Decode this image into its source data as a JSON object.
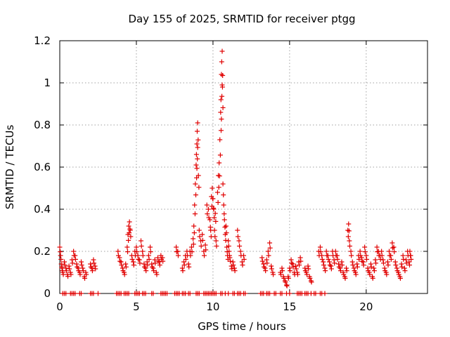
{
  "chart_data": {
    "type": "scatter",
    "title": "Day 155 of 2025, SRMTID for receiver ptgg",
    "xlabel": "GPS time / hours",
    "ylabel": "SRMTID / TECUs",
    "xlim": [
      0,
      24
    ],
    "ylim": [
      0,
      1.2
    ],
    "x_ticks": [
      0,
      5,
      10,
      15,
      20
    ],
    "x_tick_labels": [
      "0",
      "5",
      "10",
      "15",
      "20"
    ],
    "y_ticks": [
      0,
      0.2,
      0.4,
      0.6,
      0.8,
      1.0,
      1.2
    ],
    "y_tick_labels": [
      "0",
      "0.2",
      "0.4",
      "0.6",
      "0.8",
      "1",
      "1.2"
    ],
    "grid": true,
    "marker": "plus",
    "color": "#e00000",
    "series": [
      {
        "name": "SRMTID",
        "points": [
          [
            0.0,
            0.22
          ],
          [
            0.05,
            0.18
          ],
          [
            0.1,
            0.14
          ],
          [
            0.15,
            0.12
          ],
          [
            0.2,
            0.1
          ],
          [
            0.3,
            0.15
          ],
          [
            0.4,
            0.12
          ],
          [
            0.5,
            0.09
          ],
          [
            0.6,
            0.13
          ],
          [
            0.7,
            0.1
          ],
          [
            0.8,
            0.16
          ],
          [
            0.9,
            0.2
          ],
          [
            1.0,
            0.18
          ],
          [
            1.1,
            0.14
          ],
          [
            1.2,
            0.12
          ],
          [
            1.3,
            0.1
          ],
          [
            1.4,
            0.15
          ],
          [
            1.5,
            0.12
          ],
          [
            1.6,
            0.08
          ],
          [
            1.7,
            0.1
          ],
          [
            2.0,
            0.14
          ],
          [
            2.1,
            0.12
          ],
          [
            2.2,
            0.16
          ],
          [
            2.3,
            0.13
          ],
          [
            3.8,
            0.2
          ],
          [
            3.9,
            0.17
          ],
          [
            4.0,
            0.15
          ],
          [
            4.1,
            0.12
          ],
          [
            4.2,
            0.1
          ],
          [
            4.3,
            0.14
          ],
          [
            4.4,
            0.22
          ],
          [
            4.45,
            0.28
          ],
          [
            4.5,
            0.32
          ],
          [
            4.55,
            0.34
          ],
          [
            4.6,
            0.3
          ],
          [
            4.7,
            0.18
          ],
          [
            4.8,
            0.15
          ],
          [
            4.9,
            0.2
          ],
          [
            5.0,
            0.22
          ],
          [
            5.1,
            0.18
          ],
          [
            5.2,
            0.16
          ],
          [
            5.3,
            0.25
          ],
          [
            5.4,
            0.2
          ],
          [
            5.5,
            0.14
          ],
          [
            5.6,
            0.12
          ],
          [
            5.7,
            0.15
          ],
          [
            5.8,
            0.18
          ],
          [
            5.9,
            0.22
          ],
          [
            6.0,
            0.14
          ],
          [
            6.1,
            0.12
          ],
          [
            6.2,
            0.16
          ],
          [
            6.3,
            0.1
          ],
          [
            6.4,
            0.17
          ],
          [
            6.5,
            0.15
          ],
          [
            6.6,
            0.18
          ],
          [
            6.7,
            0.17
          ],
          [
            7.6,
            0.22
          ],
          [
            7.7,
            0.2
          ],
          [
            8.0,
            0.12
          ],
          [
            8.1,
            0.15
          ],
          [
            8.2,
            0.18
          ],
          [
            8.3,
            0.2
          ],
          [
            8.4,
            0.14
          ],
          [
            8.5,
            0.2
          ],
          [
            8.6,
            0.22
          ],
          [
            8.7,
            0.26
          ],
          [
            8.75,
            0.32
          ],
          [
            8.8,
            0.42
          ],
          [
            8.85,
            0.52
          ],
          [
            8.9,
            0.61
          ],
          [
            8.92,
            0.66
          ],
          [
            8.95,
            0.71
          ],
          [
            8.97,
            0.77
          ],
          [
            9.0,
            0.81
          ],
          [
            9.05,
            0.56
          ],
          [
            9.1,
            0.3
          ],
          [
            9.2,
            0.25
          ],
          [
            9.3,
            0.28
          ],
          [
            9.4,
            0.2
          ],
          [
            9.5,
            0.23
          ],
          [
            9.6,
            0.42
          ],
          [
            9.7,
            0.4
          ],
          [
            9.8,
            0.35
          ],
          [
            9.85,
            0.3
          ],
          [
            9.9,
            0.46
          ],
          [
            9.95,
            0.5
          ],
          [
            10.0,
            0.45
          ],
          [
            10.05,
            0.4
          ],
          [
            10.1,
            0.3
          ],
          [
            10.15,
            0.38
          ],
          [
            10.2,
            0.25
          ],
          [
            10.3,
            0.48
          ],
          [
            10.35,
            0.56
          ],
          [
            10.4,
            0.62
          ],
          [
            10.45,
            0.73
          ],
          [
            10.5,
            0.86
          ],
          [
            10.52,
            0.92
          ],
          [
            10.55,
            1.04
          ],
          [
            10.57,
            1.1
          ],
          [
            10.6,
            1.15
          ],
          [
            10.62,
            0.98
          ],
          [
            10.65,
            0.52
          ],
          [
            10.7,
            0.42
          ],
          [
            10.75,
            0.35
          ],
          [
            10.8,
            0.28
          ],
          [
            10.85,
            0.32
          ],
          [
            10.9,
            0.22
          ],
          [
            10.95,
            0.18
          ],
          [
            11.0,
            0.25
          ],
          [
            11.05,
            0.2
          ],
          [
            11.1,
            0.17
          ],
          [
            11.2,
            0.13
          ],
          [
            11.3,
            0.15
          ],
          [
            11.4,
            0.12
          ],
          [
            11.6,
            0.3
          ],
          [
            11.7,
            0.25
          ],
          [
            11.8,
            0.2
          ],
          [
            11.9,
            0.15
          ],
          [
            12.0,
            0.18
          ],
          [
            13.2,
            0.17
          ],
          [
            13.3,
            0.14
          ],
          [
            13.4,
            0.12
          ],
          [
            13.5,
            0.16
          ],
          [
            13.6,
            0.2
          ],
          [
            13.7,
            0.24
          ],
          [
            13.8,
            0.13
          ],
          [
            13.9,
            0.1
          ],
          [
            14.4,
            0.1
          ],
          [
            14.5,
            0.12
          ],
          [
            14.6,
            0.08
          ],
          [
            14.7,
            0.06
          ],
          [
            14.8,
            0.04
          ],
          [
            14.9,
            0.08
          ],
          [
            15.0,
            0.12
          ],
          [
            15.1,
            0.16
          ],
          [
            15.2,
            0.14
          ],
          [
            15.3,
            0.1
          ],
          [
            15.4,
            0.13
          ],
          [
            15.5,
            0.1
          ],
          [
            15.6,
            0.15
          ],
          [
            15.7,
            0.17
          ],
          [
            16.0,
            0.12
          ],
          [
            16.1,
            0.1
          ],
          [
            16.2,
            0.13
          ],
          [
            16.3,
            0.08
          ],
          [
            16.4,
            0.06
          ],
          [
            16.9,
            0.2
          ],
          [
            17.0,
            0.22
          ],
          [
            17.1,
            0.18
          ],
          [
            17.2,
            0.15
          ],
          [
            17.3,
            0.12
          ],
          [
            17.4,
            0.2
          ],
          [
            17.5,
            0.18
          ],
          [
            17.6,
            0.15
          ],
          [
            17.7,
            0.13
          ],
          [
            17.8,
            0.2
          ],
          [
            17.9,
            0.16
          ],
          [
            18.0,
            0.2
          ],
          [
            18.1,
            0.18
          ],
          [
            18.2,
            0.14
          ],
          [
            18.3,
            0.12
          ],
          [
            18.4,
            0.15
          ],
          [
            18.5,
            0.1
          ],
          [
            18.6,
            0.08
          ],
          [
            18.7,
            0.12
          ],
          [
            18.8,
            0.3
          ],
          [
            18.85,
            0.33
          ],
          [
            18.9,
            0.25
          ],
          [
            19.0,
            0.2
          ],
          [
            19.1,
            0.15
          ],
          [
            19.2,
            0.12
          ],
          [
            19.3,
            0.1
          ],
          [
            19.4,
            0.14
          ],
          [
            19.5,
            0.18
          ],
          [
            19.6,
            0.2
          ],
          [
            19.7,
            0.17
          ],
          [
            19.8,
            0.15
          ],
          [
            19.9,
            0.22
          ],
          [
            20.0,
            0.18
          ],
          [
            20.1,
            0.12
          ],
          [
            20.2,
            0.1
          ],
          [
            20.3,
            0.14
          ],
          [
            20.4,
            0.08
          ],
          [
            20.5,
            0.12
          ],
          [
            20.6,
            0.16
          ],
          [
            20.7,
            0.22
          ],
          [
            20.8,
            0.2
          ],
          [
            20.9,
            0.18
          ],
          [
            21.0,
            0.2
          ],
          [
            21.1,
            0.16
          ],
          [
            21.2,
            0.12
          ],
          [
            21.3,
            0.1
          ],
          [
            21.4,
            0.15
          ],
          [
            21.5,
            0.2
          ],
          [
            21.6,
            0.18
          ],
          [
            21.7,
            0.24
          ],
          [
            21.8,
            0.22
          ],
          [
            21.9,
            0.15
          ],
          [
            22.0,
            0.12
          ],
          [
            22.1,
            0.1
          ],
          [
            22.2,
            0.08
          ],
          [
            22.3,
            0.14
          ],
          [
            22.4,
            0.18
          ],
          [
            22.5,
            0.12
          ],
          [
            22.6,
            0.16
          ],
          [
            22.7,
            0.2
          ],
          [
            22.8,
            0.15
          ],
          [
            22.85,
            0.2
          ],
          [
            22.9,
            0.18
          ]
        ],
        "zero_points_x": [
          0.2,
          0.3,
          0.4,
          0.7,
          0.8,
          0.9,
          1.0,
          1.3,
          1.4,
          2.0,
          2.1,
          2.2,
          2.5,
          3.7,
          3.8,
          3.9,
          4.0,
          4.2,
          4.3,
          4.4,
          4.5,
          4.9,
          5.0,
          5.1,
          5.2,
          5.4,
          5.5,
          5.6,
          6.0,
          6.1,
          6.6,
          6.7,
          6.8,
          6.9,
          7.0,
          7.5,
          7.6,
          7.7,
          7.8,
          8.0,
          8.1,
          8.2,
          8.4,
          8.5,
          8.9,
          9.0,
          9.1,
          9.4,
          9.5,
          9.6,
          9.7,
          9.8,
          9.9,
          10.0,
          10.1,
          10.2,
          10.5,
          10.6,
          10.8,
          11.0,
          11.3,
          11.4,
          11.6,
          11.7,
          11.8,
          12.0,
          12.1,
          13.1,
          13.2,
          13.3,
          13.5,
          13.6,
          13.7,
          14.0,
          14.1,
          14.4,
          14.5,
          14.8,
          15.0,
          15.5,
          15.6,
          15.7,
          15.8,
          16.0,
          16.1,
          16.2,
          16.4,
          16.6,
          16.7,
          17.0,
          17.1,
          17.3
        ]
      }
    ]
  }
}
